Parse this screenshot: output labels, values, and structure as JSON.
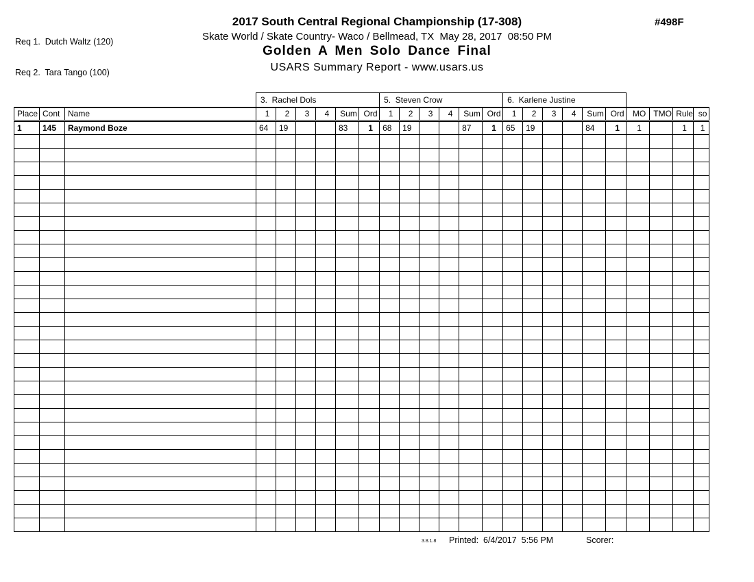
{
  "header": {
    "req_lines": [
      "Req 1.  Dutch Waltz (120)",
      "Req 2.  Tara Tango (100)"
    ],
    "title": "2017 South Central Regional Championship (17-308)",
    "venue_line": "Skate World / Skate Country- Waco / Bellmead, TX  May 28, 2017  08:50 PM",
    "event_title": "Golden A Men Solo Dance Final",
    "report_line": "USARS Summary Report - www.usars.us",
    "report_number": "#498F"
  },
  "table": {
    "judges": [
      {
        "label": "3.  Rachel Dols"
      },
      {
        "label": "5.  Steven Crow"
      },
      {
        "label": "6.  Karlene Justine"
      }
    ],
    "left_headers": [
      "Place",
      "Cont",
      "Name"
    ],
    "score_col_headers": [
      "1",
      "2",
      "3",
      "4",
      "Sum"
    ],
    "ord_header": "Ord",
    "right_headers": [
      "MO",
      "TMO",
      "Rule",
      "so"
    ],
    "rows": [
      {
        "place": "1",
        "cont": "145",
        "name": "Raymond Boze",
        "judges": [
          [
            "64",
            "19",
            "",
            "",
            "83",
            "1"
          ],
          [
            "68",
            "19",
            "",
            "",
            "87",
            "1"
          ],
          [
            "65",
            "19",
            "",
            "",
            "84",
            "1"
          ]
        ],
        "mo": "1",
        "tmo": "",
        "rule": "1",
        "so": "1"
      }
    ],
    "empty_row_count": 29
  },
  "footer": {
    "version": "3.8.1.8",
    "printed": "Printed:  6/4/2017  5:56 PM",
    "scorer_label": "Scorer:"
  }
}
